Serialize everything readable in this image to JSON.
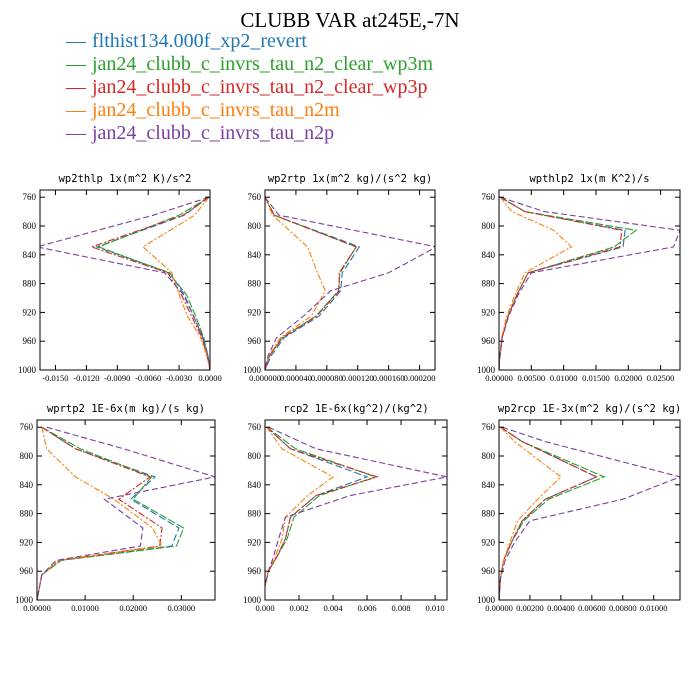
{
  "title": "CLUBB VAR at245E,-7N",
  "legend": [
    {
      "name": "flthist134.000f_xp2_revert",
      "color": "#1f77b4"
    },
    {
      "name": "jan24_clubb_c_invrs_tau_n2_clear_wp3m",
      "color": "#2ca02c"
    },
    {
      "name": "jan24_clubb_c_invrs_tau_n2_clear_wp3p",
      "color": "#d62728"
    },
    {
      "name": "jan24_clubb_c_invrs_tau_n2m",
      "color": "#ff7f0e"
    },
    {
      "name": "jan24_clubb_c_invrs_tau_n2p",
      "color": "#7b3fa0"
    }
  ],
  "chart_data": [
    {
      "type": "line",
      "title": "wp2thlp 1x(m^2 K)/s^2",
      "xlim": [
        -0.0165,
        0.0
      ],
      "ylim": [
        1000,
        750
      ],
      "xticks": [
        "-0.0150",
        "-0.0120",
        "-0.0090",
        "-0.0060",
        "-0.0030",
        "0.0000"
      ],
      "xtick_values": [
        -0.015,
        -0.012,
        -0.009,
        -0.006,
        -0.003,
        0.0
      ],
      "yticks": [
        "760",
        "800",
        "840",
        "880",
        "920",
        "960",
        "1000"
      ],
      "ytick_values": [
        760,
        800,
        840,
        880,
        920,
        960,
        1000
      ],
      "y": [
        760,
        785,
        829,
        865,
        895,
        925,
        955,
        980,
        1000
      ],
      "series": [
        {
          "values": [
            -0.0001,
            -0.0025,
            -0.011,
            -0.0039,
            -0.0025,
            -0.0016,
            -0.0007,
            -0.0002,
            0.0
          ]
        },
        {
          "values": [
            -0.0001,
            -0.003,
            -0.0108,
            -0.004,
            -0.0023,
            -0.0014,
            -0.0006,
            -0.0002,
            0.0
          ]
        },
        {
          "values": [
            -0.0001,
            -0.0026,
            -0.0115,
            -0.0041,
            -0.0028,
            -0.0018,
            -0.0008,
            -0.0003,
            0.0
          ]
        },
        {
          "values": [
            -0.0001,
            -0.0015,
            -0.0065,
            -0.0037,
            -0.003,
            -0.0022,
            -0.0009,
            -0.0003,
            0.0
          ]
        },
        {
          "values": [
            -0.0001,
            -0.0055,
            -0.0168,
            -0.0044,
            -0.0026,
            -0.0016,
            -0.0007,
            -0.0002,
            0.0
          ]
        }
      ]
    },
    {
      "type": "line",
      "title": "wp2rtp 1x(m^2 kg)/(s^2 kg)",
      "xlim": [
        0.0,
        0.00022
      ],
      "ylim": [
        1000,
        750
      ],
      "xticks": [
        "0.000000",
        "0.000040",
        "0.000080",
        "0.000120",
        "0.000160",
        "0.000200"
      ],
      "xtick_values": [
        0.0,
        4e-05,
        8e-05,
        0.00012,
        0.00016,
        0.0002
      ],
      "yticks": [
        "760",
        "800",
        "840",
        "880",
        "920",
        "960",
        "1000"
      ],
      "ytick_values": [
        760,
        800,
        840,
        880,
        920,
        960,
        1000
      ],
      "y": [
        760,
        785,
        829,
        865,
        890,
        925,
        955,
        980,
        1000
      ],
      "series": [
        {
          "values": [
            0.0,
            1.2e-05,
            0.000122,
            0.0001,
            9.8e-05,
            7e-05,
            2.5e-05,
            8e-06,
            0.0
          ]
        },
        {
          "values": [
            0.0,
            1.2e-05,
            0.000118,
            9.7e-05,
            9.5e-05,
            6.6e-05,
            2.2e-05,
            6e-06,
            0.0
          ]
        },
        {
          "values": [
            0.0,
            1.2e-05,
            0.000118,
            9.6e-05,
            9.6e-05,
            6.7e-05,
            2.3e-05,
            6e-06,
            0.0
          ]
        },
        {
          "values": [
            0.0,
            1e-05,
            5.5e-05,
            6.8e-05,
            7.8e-05,
            6e-05,
            2e-05,
            5e-06,
            0.0
          ]
        },
        {
          "values": [
            0.0,
            1.8e-05,
            0.000222,
            0.00016,
            8.5e-05,
            5e-05,
            1.5e-05,
            4e-06,
            0.0
          ]
        }
      ]
    },
    {
      "type": "line",
      "title": "wpthlp2 1x(m K^2)/s",
      "xlim": [
        0.0,
        0.028
      ],
      "ylim": [
        1000,
        750
      ],
      "xticks": [
        "0.00000",
        "0.00500",
        "0.01000",
        "0.01500",
        "0.02000",
        "0.02500"
      ],
      "xtick_values": [
        0.0,
        0.005,
        0.01,
        0.015,
        0.02,
        0.025
      ],
      "yticks": [
        "760",
        "800",
        "840",
        "880",
        "920",
        "960",
        "1000"
      ],
      "ytick_values": [
        760,
        800,
        840,
        880,
        920,
        960,
        1000
      ],
      "y": [
        760,
        780,
        806,
        829,
        865,
        895,
        925,
        955,
        985,
        1000
      ],
      "series": [
        {
          "values": [
            0.0002,
            0.004,
            0.0195,
            0.0192,
            0.0045,
            0.0028,
            0.0014,
            0.0005,
            0.0001,
            0.0
          ]
        },
        {
          "values": [
            0.0002,
            0.004,
            0.0212,
            0.0178,
            0.0045,
            0.0028,
            0.0014,
            0.0005,
            0.0001,
            0.0
          ]
        },
        {
          "values": [
            0.0002,
            0.004,
            0.019,
            0.0187,
            0.0045,
            0.0028,
            0.0014,
            0.0005,
            0.0001,
            0.0
          ]
        },
        {
          "values": [
            0.0002,
            0.002,
            0.0085,
            0.0112,
            0.004,
            0.0025,
            0.0012,
            0.0004,
            0.0001,
            0.0
          ]
        },
        {
          "values": [
            0.0002,
            0.007,
            0.028,
            0.027,
            0.005,
            0.003,
            0.0015,
            0.0005,
            0.0001,
            0.0
          ]
        }
      ]
    },
    {
      "type": "line",
      "title": "wprtp2 1E-6x(m kg)/(s kg)",
      "xlim": [
        0.0,
        0.037
      ],
      "ylim": [
        1000,
        750
      ],
      "xticks": [
        "0.00000",
        "0.01000",
        "0.02000",
        "0.03000"
      ],
      "xtick_values": [
        0.0,
        0.01,
        0.02,
        0.03
      ],
      "yticks": [
        "760",
        "800",
        "840",
        "880",
        "920",
        "960",
        "1000"
      ],
      "ytick_values": [
        760,
        800,
        840,
        880,
        920,
        960,
        1000
      ],
      "y": [
        760,
        790,
        829,
        860,
        900,
        925,
        945,
        965,
        1000
      ],
      "series": [
        {
          "values": [
            0.001,
            0.008,
            0.0245,
            0.0195,
            0.0295,
            0.028,
            0.005,
            0.001,
            0.0
          ]
        },
        {
          "values": [
            0.001,
            0.009,
            0.0238,
            0.02,
            0.0305,
            0.029,
            0.005,
            0.001,
            0.0
          ]
        },
        {
          "values": [
            0.001,
            0.008,
            0.0235,
            0.017,
            0.026,
            0.0255,
            0.0045,
            0.001,
            0.0
          ]
        },
        {
          "values": [
            0.001,
            0.002,
            0.008,
            0.016,
            0.024,
            0.026,
            0.0045,
            0.001,
            0.0
          ]
        },
        {
          "values": [
            0.002,
            0.018,
            0.037,
            0.014,
            0.022,
            0.0215,
            0.004,
            0.001,
            0.0
          ]
        }
      ]
    },
    {
      "type": "line",
      "title": "rcp2 1E-6x(kg^2)/(kg^2)",
      "xlim": [
        0.0,
        0.0107
      ],
      "ylim": [
        1000,
        750
      ],
      "xticks": [
        "0.000",
        "0.002",
        "0.004",
        "0.006",
        "0.008",
        "0.010"
      ],
      "xtick_values": [
        0.0,
        0.002,
        0.004,
        0.006,
        0.008,
        0.01
      ],
      "yticks": [
        "760",
        "800",
        "840",
        "880",
        "920",
        "960",
        "1000"
      ],
      "ytick_values": [
        760,
        800,
        840,
        880,
        920,
        960,
        1000
      ],
      "y": [
        760,
        790,
        829,
        855,
        885,
        915,
        940,
        960,
        980
      ],
      "series": [
        {
          "values": [
            0.0001,
            0.0015,
            0.006,
            0.003,
            0.0015,
            0.0012,
            0.0007,
            0.0002,
            0.0
          ]
        },
        {
          "values": [
            0.0001,
            0.0018,
            0.0065,
            0.0032,
            0.0017,
            0.0013,
            0.0007,
            0.0002,
            0.0
          ]
        },
        {
          "values": [
            0.0001,
            0.0015,
            0.0066,
            0.003,
            0.0015,
            0.0012,
            0.0007,
            0.0002,
            0.0
          ]
        },
        {
          "values": [
            0.0001,
            0.001,
            0.004,
            0.0025,
            0.0012,
            0.001,
            0.0006,
            0.0002,
            0.0
          ]
        },
        {
          "values": [
            0.0002,
            0.003,
            0.0107,
            0.005,
            0.0012,
            0.0008,
            0.0005,
            0.0002,
            0.0
          ]
        }
      ]
    },
    {
      "type": "line",
      "title": "wp2rcp 1E-3x(m^2 kg)/(s^2 kg)",
      "xlim": [
        0.0,
        0.0117
      ],
      "ylim": [
        1000,
        750
      ],
      "xticks": [
        "0.00000",
        "0.00200",
        "0.00400",
        "0.00600",
        "0.00800",
        "0.01000"
      ],
      "xtick_values": [
        0.0,
        0.002,
        0.004,
        0.006,
        0.008,
        0.01
      ],
      "yticks": [
        "760",
        "800",
        "840",
        "880",
        "920",
        "960",
        "1000"
      ],
      "ytick_values": [
        760,
        800,
        840,
        880,
        920,
        960,
        1000
      ],
      "y": [
        760,
        780,
        829,
        860,
        890,
        920,
        945,
        970,
        1000
      ],
      "series": [
        {
          "values": [
            0.0001,
            0.0015,
            0.0063,
            0.003,
            0.0015,
            0.0008,
            0.0003,
            0.0001,
            0.0
          ]
        },
        {
          "values": [
            0.0001,
            0.0015,
            0.0068,
            0.0032,
            0.0016,
            0.0008,
            0.0003,
            0.0001,
            0.0
          ]
        },
        {
          "values": [
            0.0001,
            0.0015,
            0.0063,
            0.003,
            0.0015,
            0.0008,
            0.0003,
            0.0001,
            0.0
          ]
        },
        {
          "values": [
            0.0001,
            0.001,
            0.004,
            0.0025,
            0.0012,
            0.0007,
            0.0003,
            0.0001,
            0.0
          ]
        },
        {
          "values": [
            0.0002,
            0.003,
            0.0117,
            0.008,
            0.002,
            0.001,
            0.0004,
            0.0001,
            0.0
          ]
        }
      ]
    }
  ]
}
